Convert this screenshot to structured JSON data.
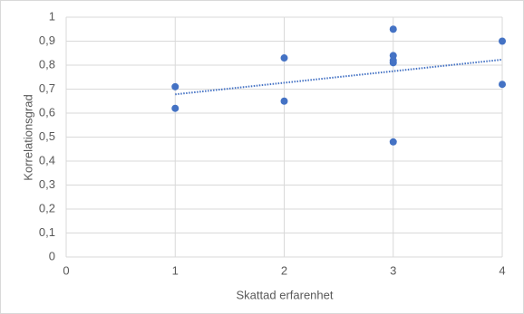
{
  "chart_data": {
    "type": "scatter",
    "x_label": "Skattad erfarenhet",
    "y_label": "Korrelationsgrad",
    "series": [
      {
        "color": "#4472c4",
        "x": [
          1,
          1,
          2,
          2,
          3,
          3,
          3,
          3,
          3,
          4,
          4
        ],
        "values": [
          0.71,
          0.62,
          0.83,
          0.65,
          0.95,
          0.84,
          0.82,
          0.81,
          0.48,
          0.9,
          0.72
        ]
      }
    ],
    "trendline": "linear",
    "xlim": [
      0,
      4
    ],
    "xticks": [
      0,
      1,
      2,
      3,
      4
    ],
    "ylim": [
      0,
      1
    ],
    "yticks": [
      0,
      {
        "value": 0.1,
        "label": "0,1"
      },
      {
        "value": 0.2,
        "label": "0,2"
      },
      {
        "value": 0.3,
        "label": "0,3"
      },
      {
        "value": 0.4,
        "label": "0,4"
      },
      {
        "value": 0.5,
        "label": "0,5"
      },
      {
        "value": 0.6,
        "label": "0,6"
      },
      {
        "value": 0.7,
        "label": "0,7"
      },
      {
        "value": 0.8,
        "label": "0,8"
      },
      {
        "value": 0.9,
        "label": "0,9"
      },
      1
    ],
    "grid": true
  }
}
